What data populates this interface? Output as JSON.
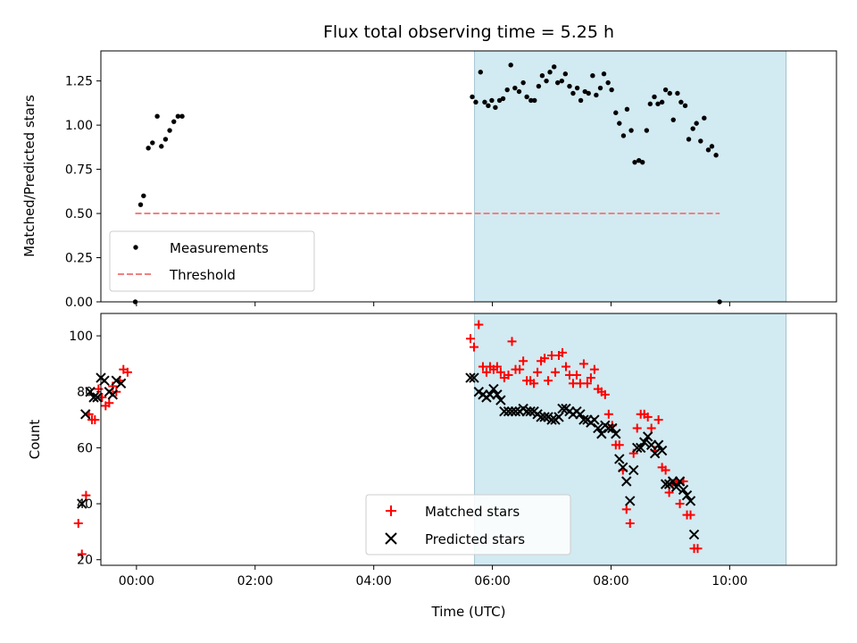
{
  "chart_data": [
    {
      "type": "scatter",
      "title": "Flux total observing time = 5.25 h",
      "ylabel": "Matched/Predicted stars",
      "xlabel": "",
      "xlim": [
        -0.6,
        11.8
      ],
      "ylim": [
        0,
        1.42
      ],
      "x_ticks": [
        0,
        2,
        4,
        6,
        8,
        10
      ],
      "x_tick_labels": [],
      "y_ticks": [
        0.0,
        0.25,
        0.5,
        0.75,
        1.0,
        1.25
      ],
      "y_tick_labels": [
        "0.00",
        "0.25",
        "0.50",
        "0.75",
        "1.00",
        "1.25"
      ],
      "shaded_span": [
        5.7,
        10.95
      ],
      "shaded_color": "#add8e6",
      "legend_position": "lower-left",
      "series": [
        {
          "name": "Measurements",
          "marker": "dot",
          "color": "#000000",
          "points": [
            [
              -0.02,
              0.0
            ],
            [
              0.07,
              0.55
            ],
            [
              0.12,
              0.6
            ],
            [
              0.2,
              0.87
            ],
            [
              0.27,
              0.9
            ],
            [
              0.35,
              1.05
            ],
            [
              0.42,
              0.88
            ],
            [
              0.49,
              0.92
            ],
            [
              0.56,
              0.97
            ],
            [
              0.63,
              1.02
            ],
            [
              0.7,
              1.05
            ],
            [
              0.77,
              1.05
            ],
            [
              5.66,
              1.16
            ],
            [
              5.72,
              1.13
            ],
            [
              5.8,
              1.3
            ],
            [
              5.87,
              1.13
            ],
            [
              5.93,
              1.11
            ],
            [
              5.99,
              1.14
            ],
            [
              6.05,
              1.1
            ],
            [
              6.12,
              1.14
            ],
            [
              6.18,
              1.15
            ],
            [
              6.25,
              1.2
            ],
            [
              6.31,
              1.34
            ],
            [
              6.38,
              1.21
            ],
            [
              6.45,
              1.19
            ],
            [
              6.52,
              1.24
            ],
            [
              6.58,
              1.16
            ],
            [
              6.65,
              1.14
            ],
            [
              6.71,
              1.14
            ],
            [
              6.78,
              1.22
            ],
            [
              6.84,
              1.28
            ],
            [
              6.91,
              1.25
            ],
            [
              6.97,
              1.3
            ],
            [
              7.04,
              1.33
            ],
            [
              7.1,
              1.24
            ],
            [
              7.17,
              1.25
            ],
            [
              7.23,
              1.29
            ],
            [
              7.3,
              1.22
            ],
            [
              7.36,
              1.18
            ],
            [
              7.43,
              1.21
            ],
            [
              7.49,
              1.14
            ],
            [
              7.56,
              1.19
            ],
            [
              7.62,
              1.18
            ],
            [
              7.69,
              1.28
            ],
            [
              7.75,
              1.17
            ],
            [
              7.82,
              1.21
            ],
            [
              7.88,
              1.29
            ],
            [
              7.95,
              1.24
            ],
            [
              8.01,
              1.2
            ],
            [
              8.08,
              1.07
            ],
            [
              8.14,
              1.01
            ],
            [
              8.21,
              0.94
            ],
            [
              8.27,
              1.09
            ],
            [
              8.34,
              0.97
            ],
            [
              8.4,
              0.79
            ],
            [
              8.47,
              0.8
            ],
            [
              8.53,
              0.79
            ],
            [
              8.6,
              0.97
            ],
            [
              8.66,
              1.12
            ],
            [
              8.73,
              1.16
            ],
            [
              8.79,
              1.12
            ],
            [
              8.86,
              1.13
            ],
            [
              8.92,
              1.2
            ],
            [
              8.99,
              1.18
            ],
            [
              9.05,
              1.03
            ],
            [
              9.12,
              1.18
            ],
            [
              9.18,
              1.13
            ],
            [
              9.25,
              1.11
            ],
            [
              9.31,
              0.92
            ],
            [
              9.38,
              0.98
            ],
            [
              9.44,
              1.01
            ],
            [
              9.51,
              0.91
            ],
            [
              9.57,
              1.04
            ],
            [
              9.64,
              0.86
            ],
            [
              9.7,
              0.88
            ],
            [
              9.77,
              0.83
            ],
            [
              9.83,
              0.0
            ]
          ]
        },
        {
          "name": "Threshold",
          "marker": "dashed-line",
          "color": "#f08080",
          "points": [
            [
              -0.02,
              0.5
            ],
            [
              9.83,
              0.5
            ]
          ]
        }
      ]
    },
    {
      "type": "scatter",
      "title": "",
      "ylabel": "Count",
      "xlabel": "Time (UTC)",
      "xlim": [
        -0.6,
        11.8
      ],
      "ylim": [
        18,
        108
      ],
      "x_ticks": [
        0,
        2,
        4,
        6,
        8,
        10
      ],
      "x_tick_labels": [
        "00:00",
        "02:00",
        "04:00",
        "06:00",
        "08:00",
        "10:00"
      ],
      "y_ticks": [
        20,
        40,
        60,
        80,
        100
      ],
      "y_tick_labels": [
        "20",
        "40",
        "60",
        "80",
        "100"
      ],
      "shaded_span": [
        5.7,
        10.95
      ],
      "shaded_color": "#add8e6",
      "legend_position": "lower-center",
      "series": [
        {
          "name": "Matched stars",
          "marker": "plus",
          "color": "#ff0000",
          "points": [
            [
              -0.98,
              33
            ],
            [
              -0.92,
              22
            ],
            [
              -0.85,
              43
            ],
            [
              -0.8,
              72
            ],
            [
              -0.75,
              70
            ],
            [
              -0.7,
              70
            ],
            [
              -0.64,
              81
            ],
            [
              -0.58,
              78
            ],
            [
              -0.52,
              75
            ],
            [
              -0.46,
              76
            ],
            [
              -0.4,
              82
            ],
            [
              -0.34,
              80
            ],
            [
              -0.28,
              84
            ],
            [
              -0.22,
              88
            ],
            [
              -0.15,
              87
            ],
            [
              5.63,
              99
            ],
            [
              5.69,
              96
            ],
            [
              5.77,
              104
            ],
            [
              5.84,
              89
            ],
            [
              5.9,
              87
            ],
            [
              5.96,
              89
            ],
            [
              6.02,
              88
            ],
            [
              6.08,
              89
            ],
            [
              6.14,
              87
            ],
            [
              6.2,
              85
            ],
            [
              6.27,
              86
            ],
            [
              6.33,
              98
            ],
            [
              6.39,
              88
            ],
            [
              6.46,
              88
            ],
            [
              6.52,
              91
            ],
            [
              6.58,
              84
            ],
            [
              6.64,
              84
            ],
            [
              6.7,
              83
            ],
            [
              6.76,
              87
            ],
            [
              6.82,
              91
            ],
            [
              6.88,
              92
            ],
            [
              6.94,
              84
            ],
            [
              7.0,
              93
            ],
            [
              7.06,
              87
            ],
            [
              7.12,
              93
            ],
            [
              7.18,
              94
            ],
            [
              7.24,
              89
            ],
            [
              7.3,
              86
            ],
            [
              7.36,
              83
            ],
            [
              7.42,
              86
            ],
            [
              7.48,
              83
            ],
            [
              7.54,
              90
            ],
            [
              7.6,
              83
            ],
            [
              7.66,
              85
            ],
            [
              7.72,
              88
            ],
            [
              7.78,
              81
            ],
            [
              7.84,
              80
            ],
            [
              7.9,
              79
            ],
            [
              7.96,
              72
            ],
            [
              8.02,
              68
            ],
            [
              8.08,
              61
            ],
            [
              8.14,
              61
            ],
            [
              8.2,
              52
            ],
            [
              8.26,
              38
            ],
            [
              8.32,
              33
            ],
            [
              8.38,
              58
            ],
            [
              8.44,
              67
            ],
            [
              8.5,
              72
            ],
            [
              8.56,
              72
            ],
            [
              8.62,
              71
            ],
            [
              8.68,
              67
            ],
            [
              8.74,
              59
            ],
            [
              8.8,
              70
            ],
            [
              8.86,
              53
            ],
            [
              8.92,
              52
            ],
            [
              8.98,
              44
            ],
            [
              9.04,
              47
            ],
            [
              9.1,
              48
            ],
            [
              9.16,
              40
            ],
            [
              9.22,
              48
            ],
            [
              9.28,
              36
            ],
            [
              9.34,
              36
            ],
            [
              9.4,
              24
            ],
            [
              9.46,
              24
            ]
          ]
        },
        {
          "name": "Predicted stars",
          "marker": "x",
          "color": "#000000",
          "points": [
            [
              -0.92,
              40
            ],
            [
              -0.86,
              72
            ],
            [
              -0.78,
              80
            ],
            [
              -0.72,
              78
            ],
            [
              -0.66,
              78
            ],
            [
              -0.6,
              85
            ],
            [
              -0.54,
              84
            ],
            [
              -0.46,
              80
            ],
            [
              -0.4,
              79
            ],
            [
              -0.34,
              84
            ],
            [
              -0.26,
              83
            ],
            [
              5.63,
              85
            ],
            [
              5.69,
              85
            ],
            [
              5.77,
              80
            ],
            [
              5.84,
              79
            ],
            [
              5.9,
              78
            ],
            [
              5.96,
              79
            ],
            [
              6.02,
              81
            ],
            [
              6.08,
              79
            ],
            [
              6.14,
              77
            ],
            [
              6.2,
              73
            ],
            [
              6.27,
              73
            ],
            [
              6.33,
              73
            ],
            [
              6.39,
              73
            ],
            [
              6.46,
              73
            ],
            [
              6.52,
              74
            ],
            [
              6.58,
              73
            ],
            [
              6.64,
              73
            ],
            [
              6.7,
              73
            ],
            [
              6.76,
              72
            ],
            [
              6.82,
              71
            ],
            [
              6.88,
              71
            ],
            [
              6.94,
              71
            ],
            [
              7.0,
              70
            ],
            [
              7.06,
              70
            ],
            [
              7.12,
              71
            ],
            [
              7.18,
              74
            ],
            [
              7.24,
              74
            ],
            [
              7.3,
              73
            ],
            [
              7.36,
              72
            ],
            [
              7.42,
              73
            ],
            [
              7.48,
              72
            ],
            [
              7.54,
              70
            ],
            [
              7.6,
              70
            ],
            [
              7.66,
              69
            ],
            [
              7.72,
              70
            ],
            [
              7.78,
              67
            ],
            [
              7.84,
              65
            ],
            [
              7.9,
              68
            ],
            [
              7.96,
              67
            ],
            [
              8.02,
              67
            ],
            [
              8.08,
              65
            ],
            [
              8.14,
              56
            ],
            [
              8.2,
              53
            ],
            [
              8.26,
              48
            ],
            [
              8.32,
              41
            ],
            [
              8.38,
              52
            ],
            [
              8.44,
              60
            ],
            [
              8.5,
              60
            ],
            [
              8.56,
              62
            ],
            [
              8.62,
              64
            ],
            [
              8.68,
              61
            ],
            [
              8.74,
              58
            ],
            [
              8.8,
              61
            ],
            [
              8.86,
              59
            ],
            [
              8.92,
              47
            ],
            [
              8.98,
              47
            ],
            [
              9.04,
              48
            ],
            [
              9.1,
              46
            ],
            [
              9.16,
              48
            ],
            [
              9.22,
              45
            ],
            [
              9.28,
              43
            ],
            [
              9.34,
              41
            ],
            [
              9.4,
              29
            ]
          ]
        }
      ]
    }
  ]
}
